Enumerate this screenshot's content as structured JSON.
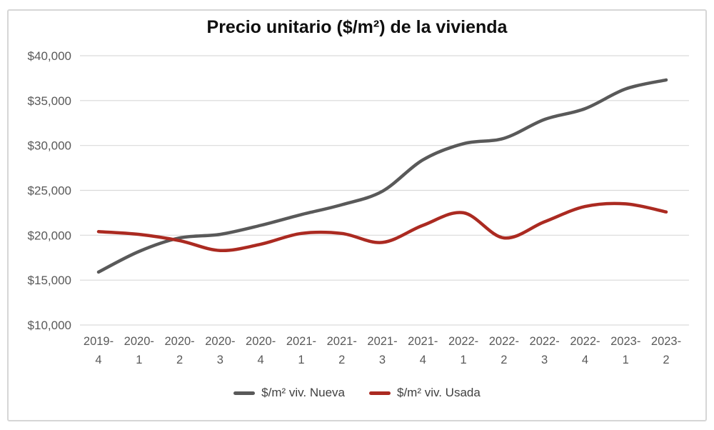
{
  "chart_data": {
    "type": "line",
    "title": "Precio unitario ($/m²) de la vivienda",
    "categories": [
      "2019-4",
      "2020-1",
      "2020-2",
      "2020-3",
      "2020-4",
      "2021-1",
      "2021-2",
      "2021-3",
      "2021-4",
      "2022-1",
      "2022-2",
      "2022-3",
      "2022-4",
      "2023-1",
      "2023-2"
    ],
    "series": [
      {
        "name": "$/m² viv. Nueva",
        "color": "#595959",
        "values": [
          15900,
          18200,
          19700,
          20100,
          21100,
          22300,
          23400,
          24900,
          28400,
          30200,
          30800,
          32900,
          34100,
          36300,
          37300
        ]
      },
      {
        "name": "$/m² viv. Usada",
        "color": "#ab2a21",
        "values": [
          20400,
          20100,
          19400,
          18300,
          19000,
          20200,
          20200,
          19200,
          21100,
          22500,
          19700,
          21500,
          23200,
          23500,
          22600
        ]
      }
    ],
    "y_ticks": [
      "$10,000",
      "$15,000",
      "$20,000",
      "$25,000",
      "$30,000",
      "$35,000",
      "$40,000"
    ],
    "ylim": [
      10000,
      40000
    ],
    "xlabel": "",
    "ylabel": "",
    "grid": true,
    "gridline_color": "#d9d9d9",
    "legend_position": "bottom",
    "smooth": true
  }
}
